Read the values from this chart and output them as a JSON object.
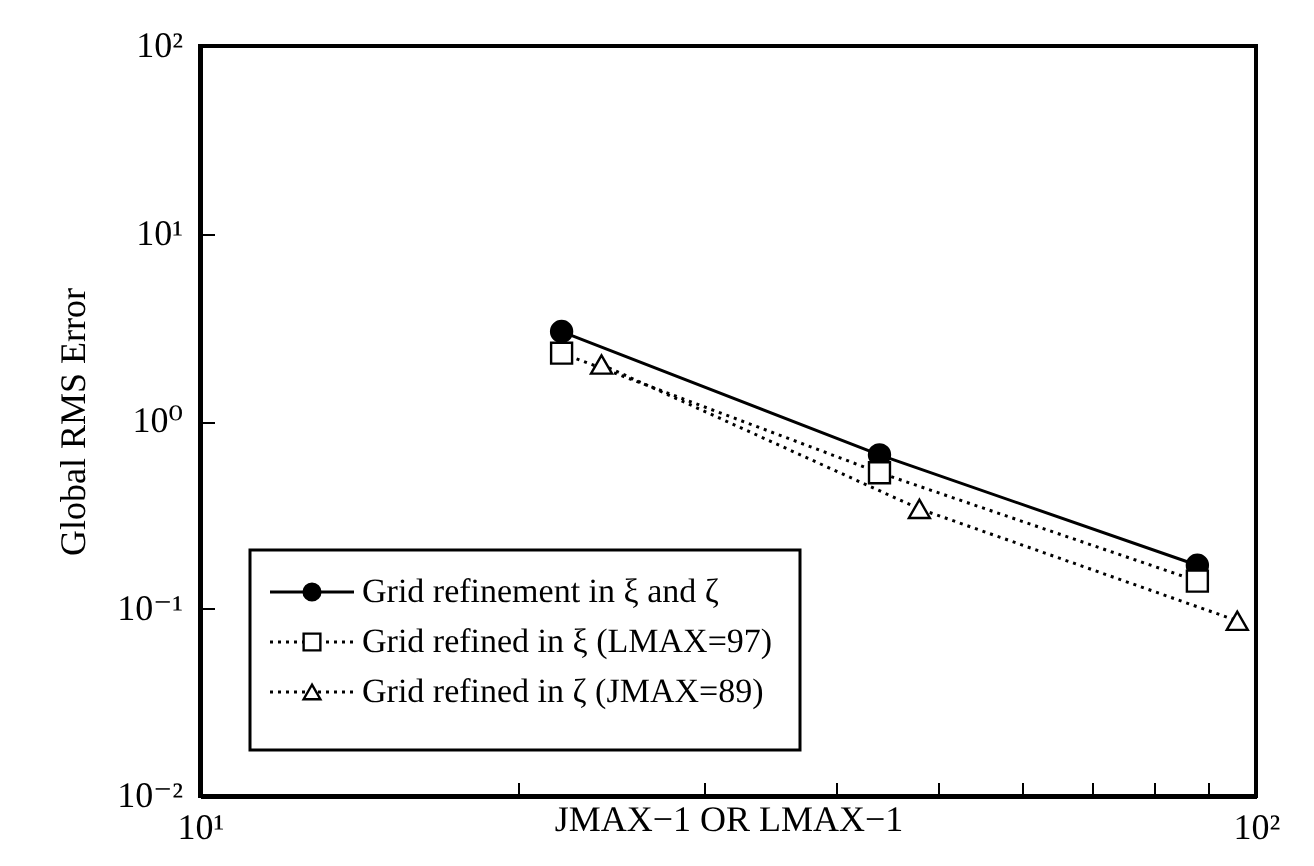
{
  "chart_data": {
    "type": "line",
    "xlabel": "JMAX−1 OR LMAX−1",
    "ylabel": "Global RMS Error",
    "log": "xy",
    "legend": "bottom left",
    "grid": false,
    "xlim": [
      10,
      100
    ],
    "ylim": [
      0.01,
      100
    ],
    "xticks": [
      {
        "value": 10,
        "label": "10¹"
      },
      {
        "value": 20,
        "label": null
      },
      {
        "value": 30,
        "label": null
      },
      {
        "value": 40,
        "label": null
      },
      {
        "value": 50,
        "label": null
      },
      {
        "value": 60,
        "label": null
      },
      {
        "value": 70,
        "label": null
      },
      {
        "value": 80,
        "label": null
      },
      {
        "value": 90,
        "label": null
      },
      {
        "value": 100,
        "label": "10²"
      }
    ],
    "yticks": [
      {
        "value": 0.01,
        "label": "10⁻²"
      },
      {
        "value": 0.1,
        "label": "10⁻¹"
      },
      {
        "value": 1,
        "label": "10⁰"
      },
      {
        "value": 10,
        "label": "10¹"
      },
      {
        "value": 100,
        "label": "10²"
      }
    ],
    "series": [
      {
        "name": "Grid refinement in ξ and ζ",
        "color": "#000000",
        "marker": "circle",
        "line_style": "solid",
        "x": [
          22,
          44,
          88
        ],
        "values": [
          3.0,
          0.66,
          0.17
        ]
      },
      {
        "name": "Grid refined in ξ (LMAX=97)",
        "color": "#000000",
        "marker": "square",
        "line_style": "dotted",
        "x": [
          22,
          44,
          88
        ],
        "values": [
          2.3,
          0.53,
          0.14
        ]
      },
      {
        "name": "Grid refined in ζ (JMAX=89)",
        "color": "#000000",
        "marker": "triangle",
        "line_style": "dotted",
        "x": [
          24,
          48,
          96
        ],
        "values": [
          2.0,
          0.34,
          0.086
        ]
      }
    ]
  }
}
